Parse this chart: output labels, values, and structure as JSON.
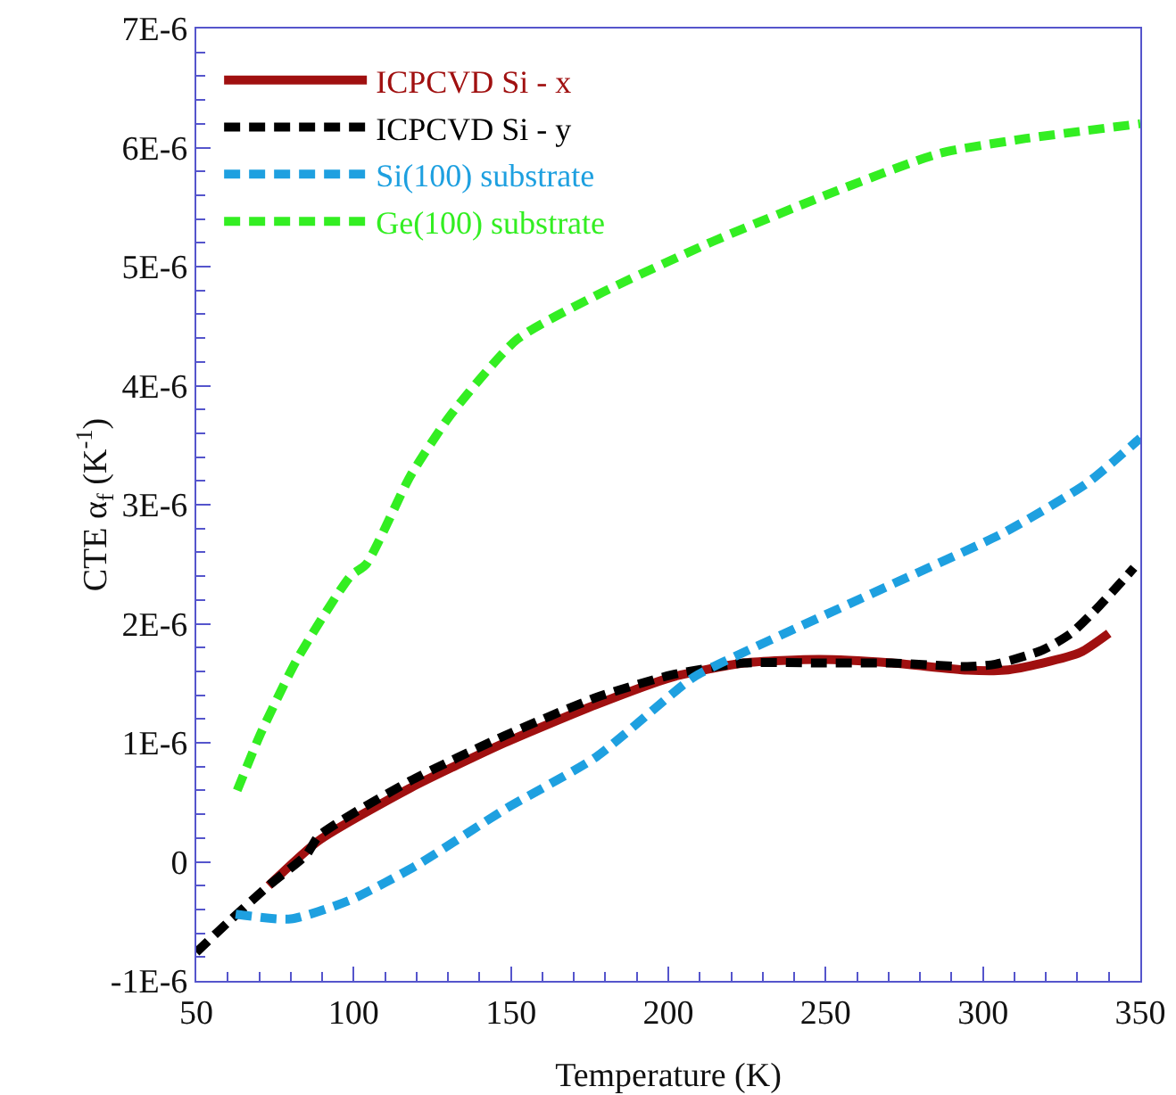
{
  "chart_data": {
    "type": "line",
    "xlabel": "Temperature (K)",
    "ylabel": "CTE α$_{f}$ (K$^{-1}$)",
    "xlim": [
      50,
      350
    ],
    "xticks": [
      50,
      100,
      150,
      200,
      250,
      300,
      350
    ],
    "ylim": [
      -1e-06,
      7e-06
    ],
    "yticks": [
      {
        "value": -1e-06,
        "label": "-1E-6"
      },
      0,
      {
        "value": 1e-06,
        "label": "1E-6"
      },
      {
        "value": 2e-06,
        "label": "2E-6"
      },
      {
        "value": 3e-06,
        "label": "3E-6"
      },
      {
        "value": 4e-06,
        "label": "4E-6"
      },
      {
        "value": 5e-06,
        "label": "5E-6"
      },
      {
        "value": 6e-06,
        "label": "6E-6"
      },
      {
        "value": 7e-06,
        "label": "7E-6"
      }
    ],
    "grid": false,
    "legend": "top left",
    "marker": "none",
    "series": [
      {
        "name": "ICPCVD Si - x",
        "color": "#a01010",
        "line_style": "solid",
        "x": [
          73,
          89,
          118,
          148,
          177,
          201,
          224,
          248,
          271,
          295,
          307,
          319,
          331,
          340
        ],
        "values": [
          -2e-07,
          1.8e-07,
          6.2e-07,
          1e-06,
          1.32e-06,
          1.55e-06,
          1.67e-06,
          1.7e-06,
          1.67e-06,
          1.61e-06,
          1.61e-06,
          1.67e-06,
          1.76e-06,
          1.92e-06
        ]
      },
      {
        "name": "ICPCVD Si - y",
        "color": "#000000",
        "line_style": "dashed",
        "x": [
          50,
          60,
          73,
          85,
          89,
          118,
          148,
          177,
          201,
          224,
          248,
          271,
          295,
          304,
          319,
          328,
          337,
          348
        ],
        "values": [
          -7.6e-07,
          -5.1e-07,
          -2e-07,
          6e-08,
          2.2e-07,
          6.8e-07,
          1.06e-06,
          1.38e-06,
          1.57e-06,
          1.67e-06,
          1.67e-06,
          1.67e-06,
          1.64e-06,
          1.66e-06,
          1.78e-06,
          1.92e-06,
          2.15e-06,
          2.47e-06
        ]
      },
      {
        "name": "Si(100) substrate",
        "color": "#1ea0e0",
        "line_style": "dashed",
        "x": [
          62.5,
          80,
          99,
          120,
          148,
          177,
          208,
          224,
          271,
          307,
          333,
          350
        ],
        "values": [
          -4.4e-07,
          -4.8e-07,
          -3.2e-07,
          -3e-08,
          4.4e-07,
          8.8e-07,
          1.55e-06,
          1.76e-06,
          2.33e-06,
          2.77e-06,
          3.18e-06,
          3.56e-06
        ]
      },
      {
        "name": "Ge(100) substrate",
        "color": "#33ee22",
        "line_style": "dashed",
        "x": [
          63,
          70.5,
          82,
          99,
          104,
          118,
          131,
          152,
          178,
          214,
          250,
          286,
          312,
          350
        ],
        "values": [
          6e-07,
          1.08e-06,
          1.7e-06,
          2.4e-06,
          2.5e-06,
          3.24e-06,
          3.76e-06,
          4.39e-06,
          4.77e-06,
          5.21e-06,
          5.6e-06,
          5.95e-06,
          6.07e-06,
          6.2e-06
        ]
      }
    ]
  }
}
